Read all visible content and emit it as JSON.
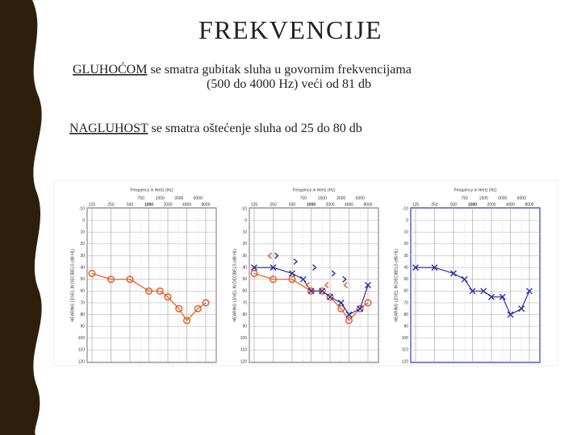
{
  "title": "FREKVENCIJE",
  "paragraphs": [
    {
      "term": "GLUHOĆOM",
      "lines": [
        " se smatra gubitak sluha u govornim frekvencijama",
        "(500 do 4000 Hz) veći od 81 db"
      ]
    },
    {
      "term": "NAGLUHOST",
      "lines": [
        " se smatra oštećenje sluha od 25 do 80 db"
      ]
    }
  ],
  "chart_data": [
    {
      "type": "line",
      "title": "Frequency in Hertz (Hz)",
      "y_label": "HEARING LEVEL IN DECIBELS (dB HL)",
      "xlim": [
        125,
        8000
      ],
      "log_x": true,
      "xticks": [
        125,
        250,
        500,
        1000,
        2000,
        4000,
        8000
      ],
      "xticks_top": [
        750,
        1500,
        3000,
        6000
      ],
      "ylim": [
        -10,
        120
      ],
      "y_inverted": true,
      "yticks": [
        -10,
        0,
        10,
        20,
        30,
        40,
        50,
        60,
        70,
        80,
        90,
        100,
        110,
        120
      ],
      "grid": true,
      "frame_color": "#8a8a8a",
      "series": [
        {
          "color": "#e8561f",
          "marker": "o",
          "line": true,
          "x": [
            125,
            250,
            500,
            1000,
            1500,
            2000,
            3000,
            4000,
            6000,
            8000
          ],
          "values": [
            45,
            50,
            50,
            60,
            60,
            65,
            75,
            85,
            75,
            70
          ]
        }
      ]
    },
    {
      "type": "line",
      "title": "Frequency in Hertz (Hz)",
      "y_label": "HEARING LEVEL IN DECIBELS (dB HL)",
      "xlim": [
        125,
        8000
      ],
      "log_x": true,
      "xticks": [
        125,
        250,
        500,
        1000,
        2000,
        4000,
        8000
      ],
      "xticks_top": [
        750,
        1500,
        3000,
        6000
      ],
      "ylim": [
        -10,
        120
      ],
      "y_inverted": true,
      "yticks": [
        -10,
        0,
        10,
        20,
        30,
        40,
        50,
        60,
        70,
        80,
        90,
        100,
        110,
        120
      ],
      "grid": true,
      "frame_color": "#8a8a8a",
      "series": [
        {
          "color": "#e8561f",
          "marker": "o",
          "line": true,
          "x": [
            125,
            250,
            500,
            1000,
            1500,
            2000,
            3000,
            4000,
            6000,
            8000
          ],
          "values": [
            45,
            50,
            50,
            60,
            60,
            65,
            75,
            85,
            75,
            70
          ]
        },
        {
          "color": "#2b2fa8",
          "marker": "x",
          "line": true,
          "x": [
            125,
            250,
            500,
            750,
            1000,
            1500,
            2000,
            3000,
            4000,
            6000,
            8000
          ],
          "values": [
            40,
            40,
            45,
            50,
            60,
            60,
            65,
            70,
            80,
            75,
            55
          ]
        },
        {
          "color": "#e8561f",
          "marker": "<",
          "line": false,
          "x": [
            250,
            1000,
            2000,
            4000
          ],
          "values": [
            30,
            55,
            55,
            55
          ]
        },
        {
          "color": "#2b2fa8",
          "marker": ">",
          "line": false,
          "x": [
            250,
            500,
            1000,
            2000,
            3000
          ],
          "values": [
            30,
            35,
            40,
            45,
            50
          ]
        }
      ]
    },
    {
      "type": "line",
      "title": "Frequency in Hertz (Hz)",
      "y_label": "HEARING LEVEL IN DECIBELS (dB HL)",
      "xlim": [
        125,
        8000
      ],
      "log_x": true,
      "xticks": [
        125,
        250,
        500,
        1000,
        2000,
        4000,
        8000
      ],
      "xticks_top": [
        750,
        1500,
        3000,
        6000
      ],
      "ylim": [
        -10,
        120
      ],
      "y_inverted": true,
      "yticks": [
        -10,
        0,
        10,
        20,
        30,
        40,
        50,
        60,
        70,
        80,
        90,
        100,
        110,
        120
      ],
      "grid": true,
      "frame_color": "#2b3fb0",
      "series": [
        {
          "color": "#2b2fa8",
          "marker": "x",
          "line": true,
          "x": [
            125,
            250,
            500,
            750,
            1000,
            1500,
            2000,
            3000,
            4000,
            6000,
            8000
          ],
          "values": [
            40,
            40,
            45,
            50,
            60,
            60,
            65,
            65,
            80,
            75,
            60
          ]
        }
      ]
    }
  ]
}
